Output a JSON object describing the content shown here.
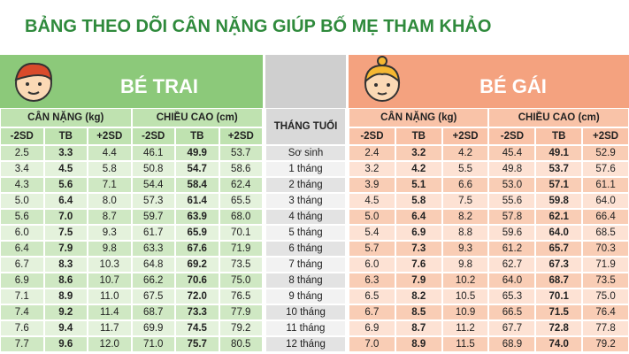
{
  "title": "BẢNG THEO DÕI CÂN NẶNG GIÚP BỐ MẸ THAM KHẢO",
  "boy_label": "BÉ TRAI",
  "girl_label": "BÉ GÁI",
  "weight_header": "CÂN NẶNG (kg)",
  "height_header": "CHIỀU CAO (cm)",
  "sd_labels": [
    "-2SD",
    "TB",
    "+2SD"
  ],
  "month_header": "THÁNG TUỔI",
  "rows": [
    {
      "month": "Sơ sinh",
      "boy": [
        "2.5",
        "3.3",
        "4.4",
        "46.1",
        "49.9",
        "53.7"
      ],
      "girl": [
        "2.4",
        "3.2",
        "4.2",
        "45.4",
        "49.1",
        "52.9"
      ]
    },
    {
      "month": "1 tháng",
      "boy": [
        "3.4",
        "4.5",
        "5.8",
        "50.8",
        "54.7",
        "58.6"
      ],
      "girl": [
        "3.2",
        "4.2",
        "5.5",
        "49.8",
        "53.7",
        "57.6"
      ]
    },
    {
      "month": "2 tháng",
      "boy": [
        "4.3",
        "5.6",
        "7.1",
        "54.4",
        "58.4",
        "62.4"
      ],
      "girl": [
        "3.9",
        "5.1",
        "6.6",
        "53.0",
        "57.1",
        "61.1"
      ]
    },
    {
      "month": "3 tháng",
      "boy": [
        "5.0",
        "6.4",
        "8.0",
        "57.3",
        "61.4",
        "65.5"
      ],
      "girl": [
        "4.5",
        "5.8",
        "7.5",
        "55.6",
        "59.8",
        "64.0"
      ]
    },
    {
      "month": "4 tháng",
      "boy": [
        "5.6",
        "7.0",
        "8.7",
        "59.7",
        "63.9",
        "68.0"
      ],
      "girl": [
        "5.0",
        "6.4",
        "8.2",
        "57.8",
        "62.1",
        "66.4"
      ]
    },
    {
      "month": "5 tháng",
      "boy": [
        "6.0",
        "7.5",
        "9.3",
        "61.7",
        "65.9",
        "70.1"
      ],
      "girl": [
        "5.4",
        "6.9",
        "8.8",
        "59.6",
        "64.0",
        "68.5"
      ]
    },
    {
      "month": "6 tháng",
      "boy": [
        "6.4",
        "7.9",
        "9.8",
        "63.3",
        "67.6",
        "71.9"
      ],
      "girl": [
        "5.7",
        "7.3",
        "9.3",
        "61.2",
        "65.7",
        "70.3"
      ]
    },
    {
      "month": "7 tháng",
      "boy": [
        "6.7",
        "8.3",
        "10.3",
        "64.8",
        "69.2",
        "73.5"
      ],
      "girl": [
        "6.0",
        "7.6",
        "9.8",
        "62.7",
        "67.3",
        "71.9"
      ]
    },
    {
      "month": "8 tháng",
      "boy": [
        "6.9",
        "8.6",
        "10.7",
        "66.2",
        "70.6",
        "75.0"
      ],
      "girl": [
        "6.3",
        "7.9",
        "10.2",
        "64.0",
        "68.7",
        "73.5"
      ]
    },
    {
      "month": "9 tháng",
      "boy": [
        "7.1",
        "8.9",
        "11.0",
        "67.5",
        "72.0",
        "76.5"
      ],
      "girl": [
        "6.5",
        "8.2",
        "10.5",
        "65.3",
        "70.1",
        "75.0"
      ]
    },
    {
      "month": "10 tháng",
      "boy": [
        "7.4",
        "9.2",
        "11.4",
        "68.7",
        "73.3",
        "77.9"
      ],
      "girl": [
        "6.7",
        "8.5",
        "10.9",
        "66.5",
        "71.5",
        "76.4"
      ]
    },
    {
      "month": "11 tháng",
      "boy": [
        "7.6",
        "9.4",
        "11.7",
        "69.9",
        "74.5",
        "79.2"
      ],
      "girl": [
        "6.9",
        "8.7",
        "11.2",
        "67.7",
        "72.8",
        "77.8"
      ]
    },
    {
      "month": "12 tháng",
      "boy": [
        "7.7",
        "9.6",
        "12.0",
        "71.0",
        "75.7",
        "80.5"
      ],
      "girl": [
        "7.0",
        "8.9",
        "11.5",
        "68.9",
        "74.0",
        "79.2"
      ]
    }
  ]
}
